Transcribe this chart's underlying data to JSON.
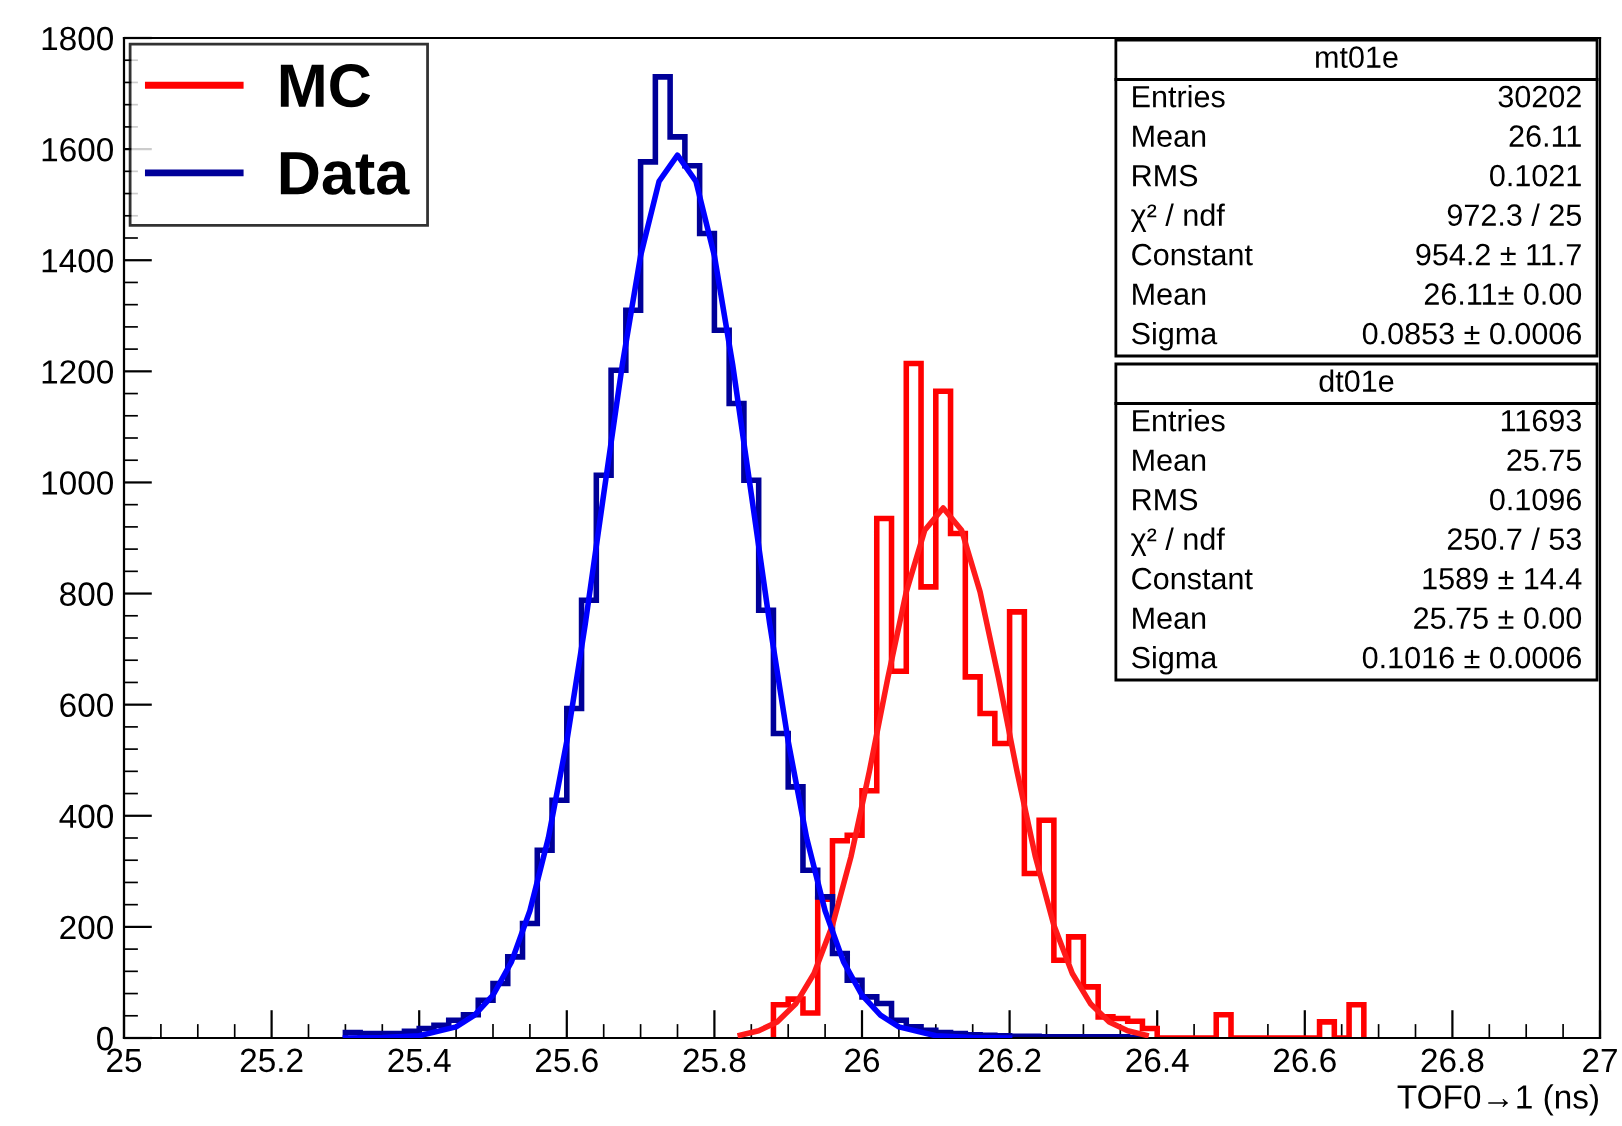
{
  "chart_data": {
    "type": "histogram",
    "xlabel": "TOF0→1 (ns)",
    "xlim": [
      25,
      27
    ],
    "xticks": [
      25,
      25.2,
      25.4,
      25.6,
      25.8,
      26,
      26.2,
      26.4,
      26.6,
      26.8,
      27
    ],
    "ylim": [
      0,
      1800
    ],
    "yticks": [
      0,
      200,
      400,
      600,
      800,
      1000,
      1200,
      1400,
      1600,
      1800
    ],
    "grid": false,
    "legend": "top left",
    "series": [
      {
        "name": "MC",
        "color": "#ff0000",
        "bins": [
          25.88,
          25.9,
          25.92,
          25.94,
          25.96,
          25.98,
          26.0,
          26.02,
          26.04,
          26.06,
          26.08,
          26.1,
          26.12,
          26.14,
          26.16,
          26.18,
          26.2,
          26.22,
          26.24,
          26.26,
          26.28,
          26.3,
          26.32,
          26.34,
          26.36,
          26.38,
          26.4,
          26.48,
          26.5,
          26.62,
          26.64,
          26.66,
          26.68
        ],
        "values": [
          60,
          70,
          45,
          250,
          355,
          365,
          445,
          935,
          660,
          1214,
          812,
          1164,
          908,
          650,
          584,
          530,
          767,
          296,
          392,
          140,
          182,
          92,
          38,
          35,
          30,
          17,
          0,
          42,
          0,
          29,
          0,
          60
        ]
      },
      {
        "name": "Data",
        "color": "#000099",
        "bins": [
          25.3,
          25.32,
          25.34,
          25.36,
          25.38,
          25.4,
          25.42,
          25.44,
          25.46,
          25.48,
          25.5,
          25.52,
          25.54,
          25.56,
          25.58,
          25.6,
          25.62,
          25.64,
          25.66,
          25.68,
          25.7,
          25.72,
          25.74,
          25.76,
          25.78,
          25.8,
          25.82,
          25.84,
          25.86,
          25.88,
          25.9,
          25.92,
          25.94,
          25.96,
          25.98,
          26.0,
          26.02,
          26.04,
          26.06,
          26.08,
          26.1,
          26.12,
          26.14,
          26.16,
          26.18,
          26.2,
          26.22,
          26.24,
          26.26,
          26.28,
          26.3,
          26.32,
          26.34,
          26.36,
          26.38
        ],
        "values": [
          10,
          8,
          8,
          8,
          12,
          17,
          23,
          32,
          42,
          68,
          98,
          146,
          206,
          338,
          428,
          593,
          788,
          1013,
          1202,
          1310,
          1577,
          1730,
          1622,
          1570,
          1448,
          1274,
          1142,
          1004,
          770,
          548,
          452,
          302,
          254,
          152,
          104,
          74,
          62,
          32,
          20,
          14,
          10,
          8,
          6,
          5,
          4,
          3,
          3,
          2,
          2,
          2,
          2,
          2,
          2,
          1
        ]
      },
      {
        "type": "line",
        "color": "#ff1a1a",
        "x": [
          25.835,
          25.86,
          25.885,
          25.91,
          25.935,
          25.96,
          25.985,
          26.01,
          26.035,
          26.06,
          26.085,
          26.11,
          26.135,
          26.16,
          26.185,
          26.21,
          26.235,
          26.26,
          26.285,
          26.31,
          26.335,
          26.36,
          26.385
        ],
        "values": [
          5,
          13,
          29,
          61,
          116,
          203,
          326,
          480,
          648,
          803,
          914,
          954,
          914,
          803,
          648,
          480,
          326,
          203,
          116,
          61,
          29,
          13,
          5
        ]
      },
      {
        "type": "line",
        "color": "#0000ff",
        "x": [
          25.3,
          25.35,
          25.4,
          25.45,
          25.475,
          25.5,
          25.525,
          25.55,
          25.575,
          25.6,
          25.625,
          25.65,
          25.675,
          25.7,
          25.725,
          25.75,
          25.775,
          25.8,
          25.825,
          25.85,
          25.875,
          25.9,
          25.925,
          25.95,
          25.975,
          26.0,
          26.025,
          26.05,
          26.1,
          26.15,
          26.2
        ],
        "values": [
          0,
          1,
          4,
          20,
          41,
          77,
          137,
          229,
          360,
          534,
          745,
          979,
          1210,
          1408,
          1542,
          1589,
          1542,
          1408,
          1210,
          979,
          745,
          534,
          360,
          229,
          137,
          77,
          41,
          20,
          4,
          1,
          0
        ]
      }
    ],
    "annotations": [
      "mt01e",
      "Entries",
      "30202",
      "Mean",
      "26.11",
      "RMS",
      "0.1021",
      "χ² / ndf",
      "972.3 / 25",
      "Constant",
      "954.2 ± 11.7",
      "Mean",
      "26.11± 0.00",
      "Sigma",
      "0.0853 ± 0.0006",
      "dt01e",
      "Entries",
      "11693",
      "Mean",
      "25.75",
      "RMS",
      "0.1096",
      "χ² / ndf",
      "250.7 / 53",
      "Constant",
      "1589 ± 14.4",
      "Mean",
      "25.75 ± 0.00",
      "Sigma",
      "0.1016 ± 0.0006"
    ]
  }
}
